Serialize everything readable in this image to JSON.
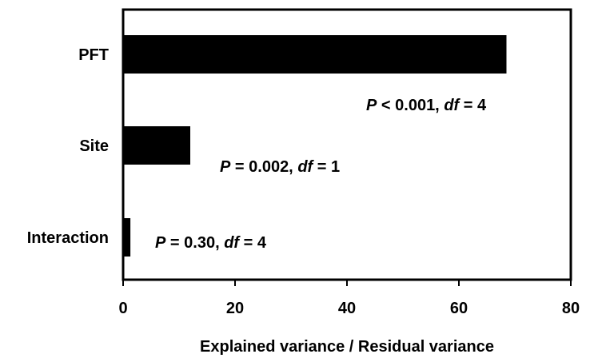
{
  "chart_data": {
    "type": "bar",
    "orientation": "horizontal",
    "categories": [
      "PFT",
      "Site",
      "Interaction"
    ],
    "values": [
      68.5,
      12.0,
      1.3
    ],
    "annotations": [
      {
        "p_label": "P",
        "p_relation": "<",
        "p_value": "0.001",
        "df_label": "df",
        "df_value": "4"
      },
      {
        "p_label": "P",
        "p_relation": "=",
        "p_value": "0.002",
        "df_label": "df",
        "df_value": "1"
      },
      {
        "p_label": "P",
        "p_relation": "=",
        "p_value": "0.30",
        "df_label": "df",
        "df_value": "4"
      }
    ],
    "xlabel": "Explained variance / Residual variance",
    "xlim": [
      0,
      80
    ],
    "xticks": [
      "0",
      "20",
      "40",
      "60",
      "80"
    ],
    "grid": false,
    "bar_color": "#000000"
  }
}
